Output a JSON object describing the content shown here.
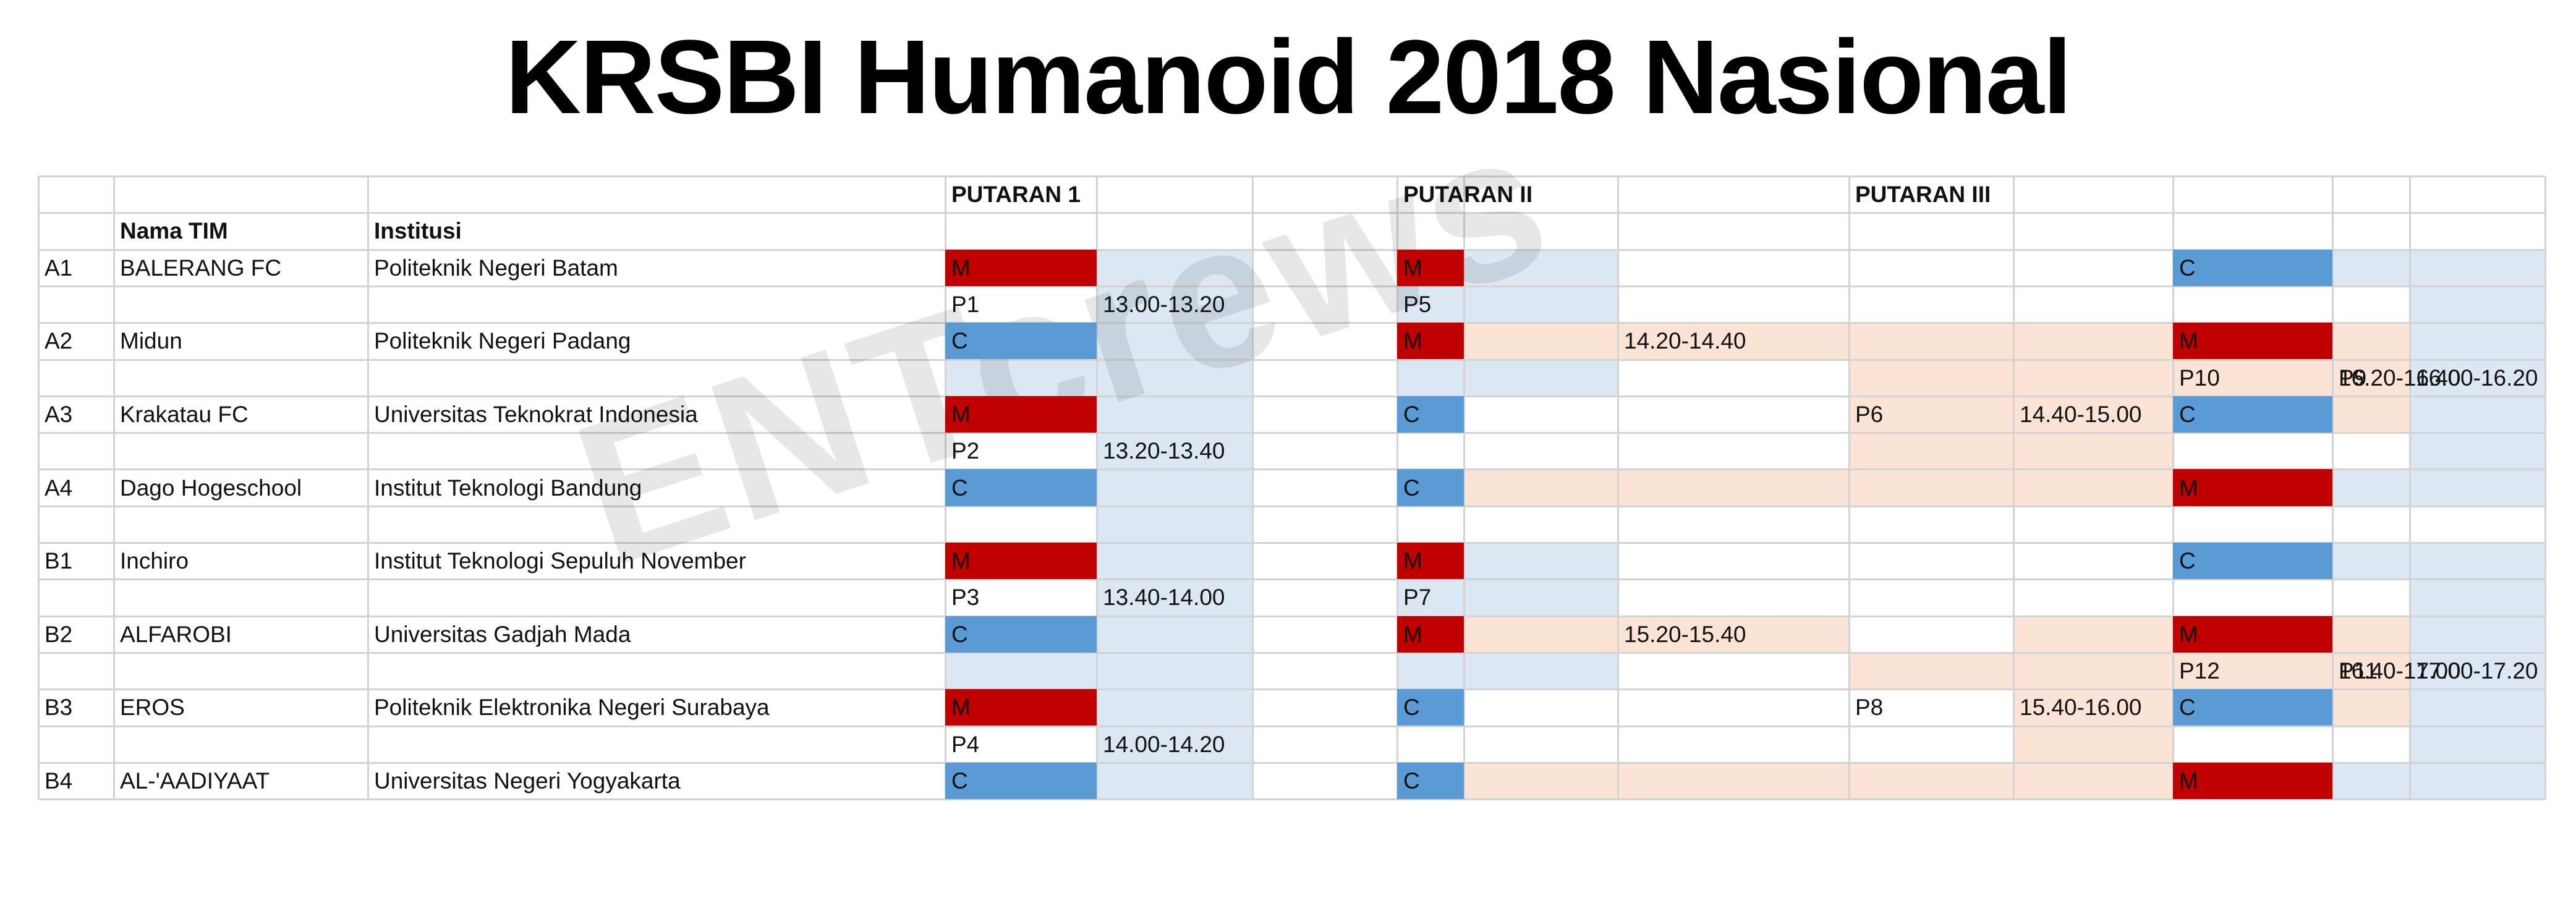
{
  "title": "KRSBI Humanoid 2018 Nasional",
  "watermark": "ENTcrews",
  "colors": {
    "m": "#c00000",
    "c": "#5b9bd5",
    "light_blue": "#dbe8f4",
    "peach": "#fbe3d6",
    "grid": "#d3d3d3"
  },
  "rounds": [
    "PUTARAN 1",
    "PUTARAN II",
    "PUTARAN III"
  ],
  "headers": {
    "team": "Nama TIM",
    "institution": "Institusi"
  },
  "teams": [
    {
      "id": "A1",
      "name": "BALERANG FC",
      "institution": "Politeknik Negeri Batam"
    },
    {
      "id": "A2",
      "name": "Midun",
      "institution": "Politeknik Negeri Padang"
    },
    {
      "id": "A3",
      "name": "Krakatau FC",
      "institution": "Universitas Teknokrat Indonesia"
    },
    {
      "id": "A4",
      "name": "Dago Hogeschool",
      "institution": "Institut Teknologi Bandung"
    },
    {
      "id": "B1",
      "name": "Inchiro",
      "institution": "Institut Teknologi Sepuluh November"
    },
    {
      "id": "B2",
      "name": "ALFAROBI",
      "institution": "Universitas Gadjah Mada"
    },
    {
      "id": "B3",
      "name": "EROS",
      "institution": "Politeknik Elektronika Negeri Surabaya"
    },
    {
      "id": "B4",
      "name": "AL-'AADIYAAT",
      "institution": "Universitas Negeri Yogyakarta"
    }
  ],
  "round1": [
    {
      "role": "M"
    },
    {
      "match": "P1",
      "time": "13.00-13.20"
    },
    {
      "role": "C"
    },
    {
      "role": "M"
    },
    {
      "match": "P2",
      "time": "13.20-13.40"
    },
    {
      "role": "C"
    },
    {
      "role": "M"
    },
    {
      "match": "P3",
      "time": "13.40-14.00"
    },
    {
      "role": "C"
    },
    {
      "role": "M"
    },
    {
      "match": "P4",
      "time": "14.00-14.20"
    },
    {
      "role": "C"
    }
  ],
  "round2": {
    "roles": [
      "M",
      "M",
      "C",
      "C",
      "M",
      "M",
      "C",
      "C"
    ],
    "matches": [
      "P5",
      "P7"
    ],
    "times": [
      "14.20-14.40",
      "15.20-15.40"
    ]
  },
  "round3": {
    "matches": [
      "P6",
      "P8"
    ],
    "times": [
      "14.40-15.00",
      "15.40-16.00"
    ],
    "roles": [
      "C",
      "M",
      "C",
      "M",
      "C",
      "M",
      "C",
      "M"
    ],
    "final_matches": [
      "P10",
      "P12"
    ],
    "final_times": [
      "16.20-16.40",
      "16.40-17.00"
    ],
    "extra_matches": [
      "P9",
      "P11"
    ],
    "extra_times": [
      "16.00-16.20",
      "17.00-17.20"
    ]
  }
}
